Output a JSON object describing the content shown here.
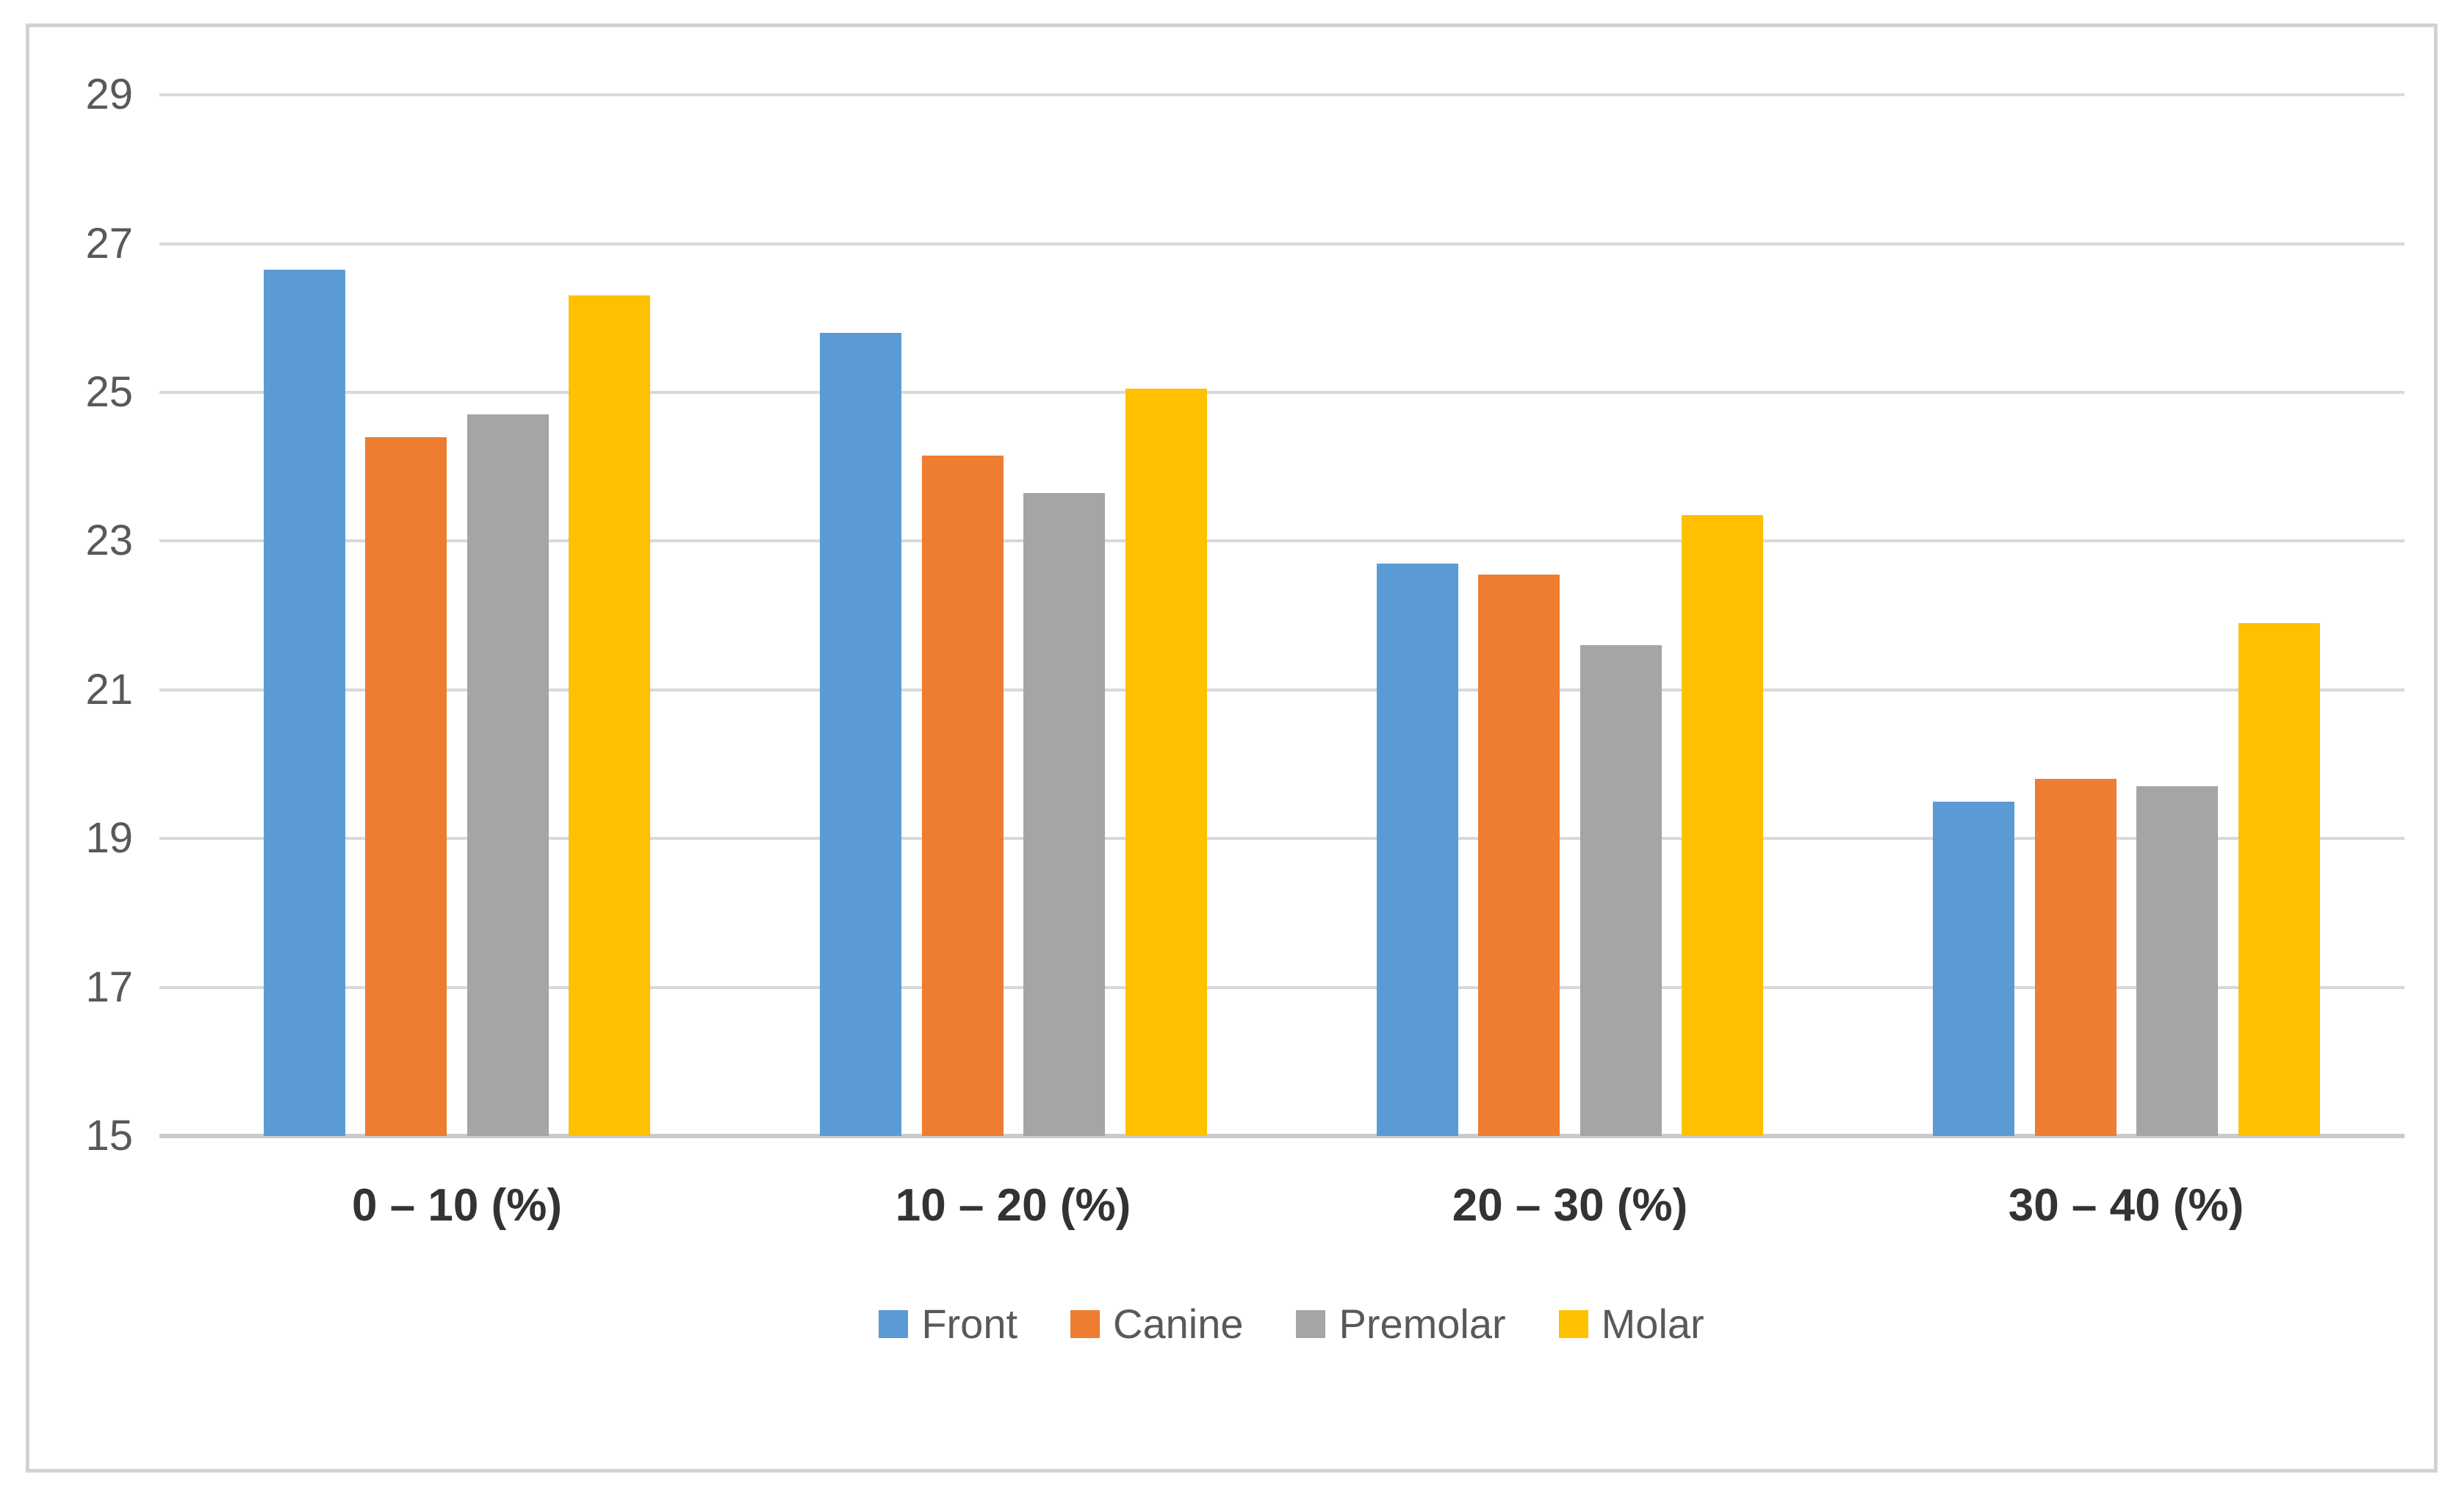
{
  "chart_data": {
    "type": "bar",
    "title": "",
    "xlabel": "",
    "ylabel": "",
    "categories": [
      "0 – 10 (%)",
      "10 – 20 (%)",
      "20 – 30 (%)",
      "30 – 40 (%)"
    ],
    "series": [
      {
        "name": "Front",
        "color": "#5B9BD5",
        "values": [
          26.65,
          25.8,
          22.7,
          19.5
        ]
      },
      {
        "name": "Canine",
        "color": "#ED7D31",
        "values": [
          24.4,
          24.15,
          22.55,
          19.8
        ]
      },
      {
        "name": "Premolar",
        "color": "#A5A5A5",
        "values": [
          24.7,
          23.65,
          21.6,
          19.7
        ]
      },
      {
        "name": "Molar",
        "color": "#FFC000",
        "values": [
          26.3,
          25.05,
          23.35,
          21.9
        ]
      }
    ],
    "ylim": [
      15,
      29
    ],
    "yticks": [
      29,
      27,
      25,
      23,
      21,
      19,
      17,
      15
    ],
    "grid": true,
    "legend_position": "bottom",
    "colors": {
      "gridline": "#D9D9D9",
      "axis_line": "#CBCBCB",
      "tick_label": "#595959",
      "category_label": "#333333",
      "legend_label": "#595959",
      "frame_border": "#D2D2D2",
      "background": "#FFFFFF"
    }
  }
}
